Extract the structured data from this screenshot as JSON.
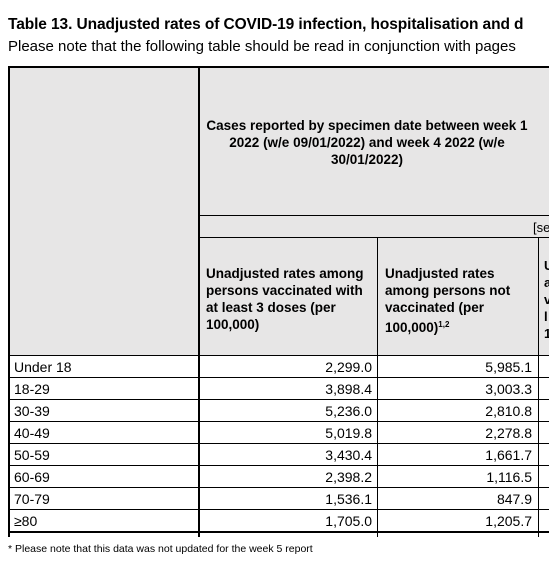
{
  "title": "Table 13. Unadjusted rates of COVID-19 infection, hospitalisation and d",
  "subtitle": "Please note that the following table should be read in conjunction with pages",
  "header": {
    "period": "Cases reported by specimen date between week 1 2022 (w/e 09/01/2022) and week 4 2022 (w/e 30/01/2022)",
    "sub_label_cut": "[se",
    "col1": "Unadjusted rates among persons vaccinated with at least 3 doses (per 100,000)",
    "col2_text": "Unadjusted rates among persons not vaccinated (per 100,000)",
    "col2_sup": "1,2",
    "col3_fragment": [
      "U",
      "a",
      "v",
      "l",
      "1"
    ]
  },
  "rows": [
    {
      "age": "Under 18",
      "vaccinated": "2,299.0",
      "unvaccinated": "5,985.1"
    },
    {
      "age": "18-29",
      "vaccinated": "3,898.4",
      "unvaccinated": "3,003.3"
    },
    {
      "age": "30-39",
      "vaccinated": "5,236.0",
      "unvaccinated": "2,810.8"
    },
    {
      "age": "40-49",
      "vaccinated": "5,019.8",
      "unvaccinated": "2,278.8"
    },
    {
      "age": "50-59",
      "vaccinated": "3,430.4",
      "unvaccinated": "1,661.7"
    },
    {
      "age": "60-69",
      "vaccinated": "2,398.2",
      "unvaccinated": "1,116.5"
    },
    {
      "age": "70-79",
      "vaccinated": "1,536.1",
      "unvaccinated": "847.9"
    },
    {
      "age": "≥80",
      "vaccinated": "1,705.0",
      "unvaccinated": "1,205.7"
    }
  ],
  "footnote": "* Please note that this data was not updated for the week 5 report"
}
